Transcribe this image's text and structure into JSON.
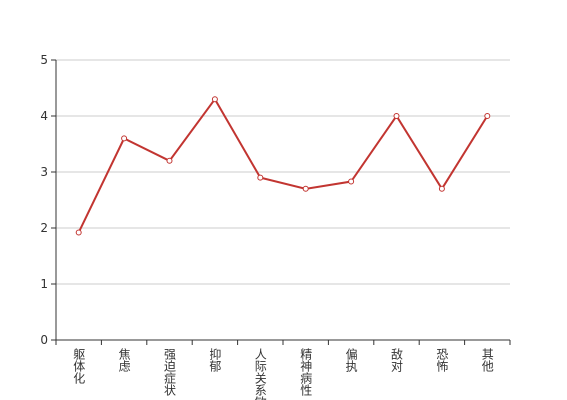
{
  "chart_data": {
    "type": "line",
    "categories": [
      "躯体化",
      "焦虑",
      "强迫症状",
      "抑郁",
      "人际关系敏感",
      "精神病性",
      "偏执",
      "敌对",
      "恐怖",
      "其他"
    ],
    "values": [
      1.92,
      3.6,
      3.2,
      4.3,
      2.9,
      2.7,
      2.83,
      4.0,
      2.7,
      4.0
    ],
    "color": "#c23531",
    "ylim": [
      0,
      5
    ],
    "yticks": [
      0,
      1,
      2,
      3,
      4,
      5
    ],
    "grid": true
  }
}
